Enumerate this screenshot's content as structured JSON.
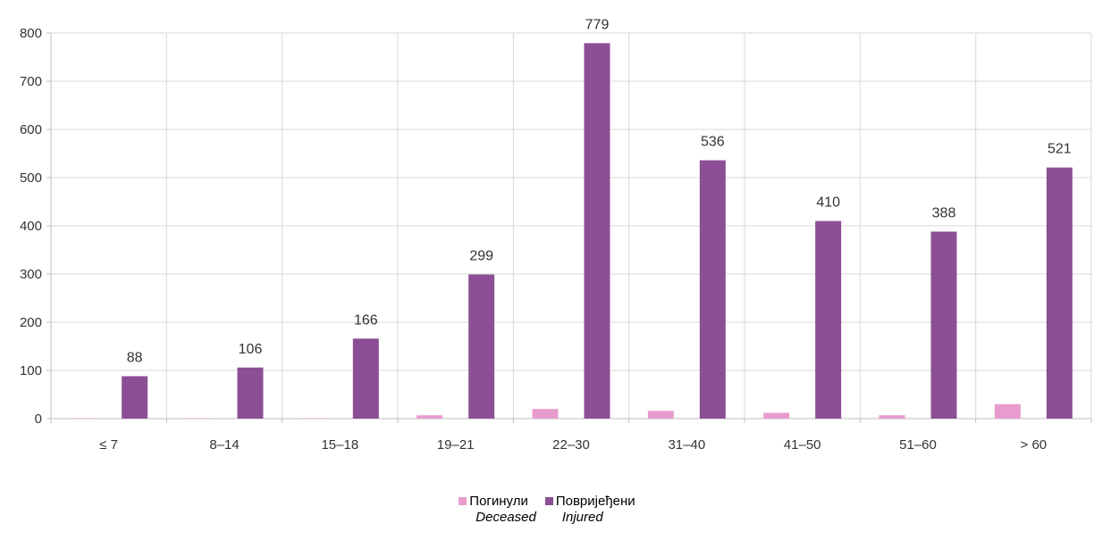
{
  "chart_data": {
    "type": "bar",
    "categories": [
      "≤ 7",
      "8–14",
      "15–18",
      "19–21",
      "22–30",
      "31–40",
      "41–50",
      "51–60",
      "> 60"
    ],
    "series": [
      {
        "name": "Погинули",
        "name_en": "Deceased",
        "color": "#e89ccd",
        "values": [
          1,
          1,
          1,
          7,
          20,
          16,
          12,
          7,
          30
        ],
        "show_labels": false
      },
      {
        "name": "Повријеђени",
        "name_en": "Injured",
        "color": "#8c4f95",
        "values": [
          88,
          106,
          166,
          299,
          779,
          536,
          410,
          388,
          521
        ],
        "show_labels": true
      }
    ],
    "ylim": [
      0,
      800
    ],
    "yticks": [
      0,
      100,
      200,
      300,
      400,
      500,
      600,
      700,
      800
    ],
    "grid": true,
    "legend_position": "bottom-center"
  }
}
